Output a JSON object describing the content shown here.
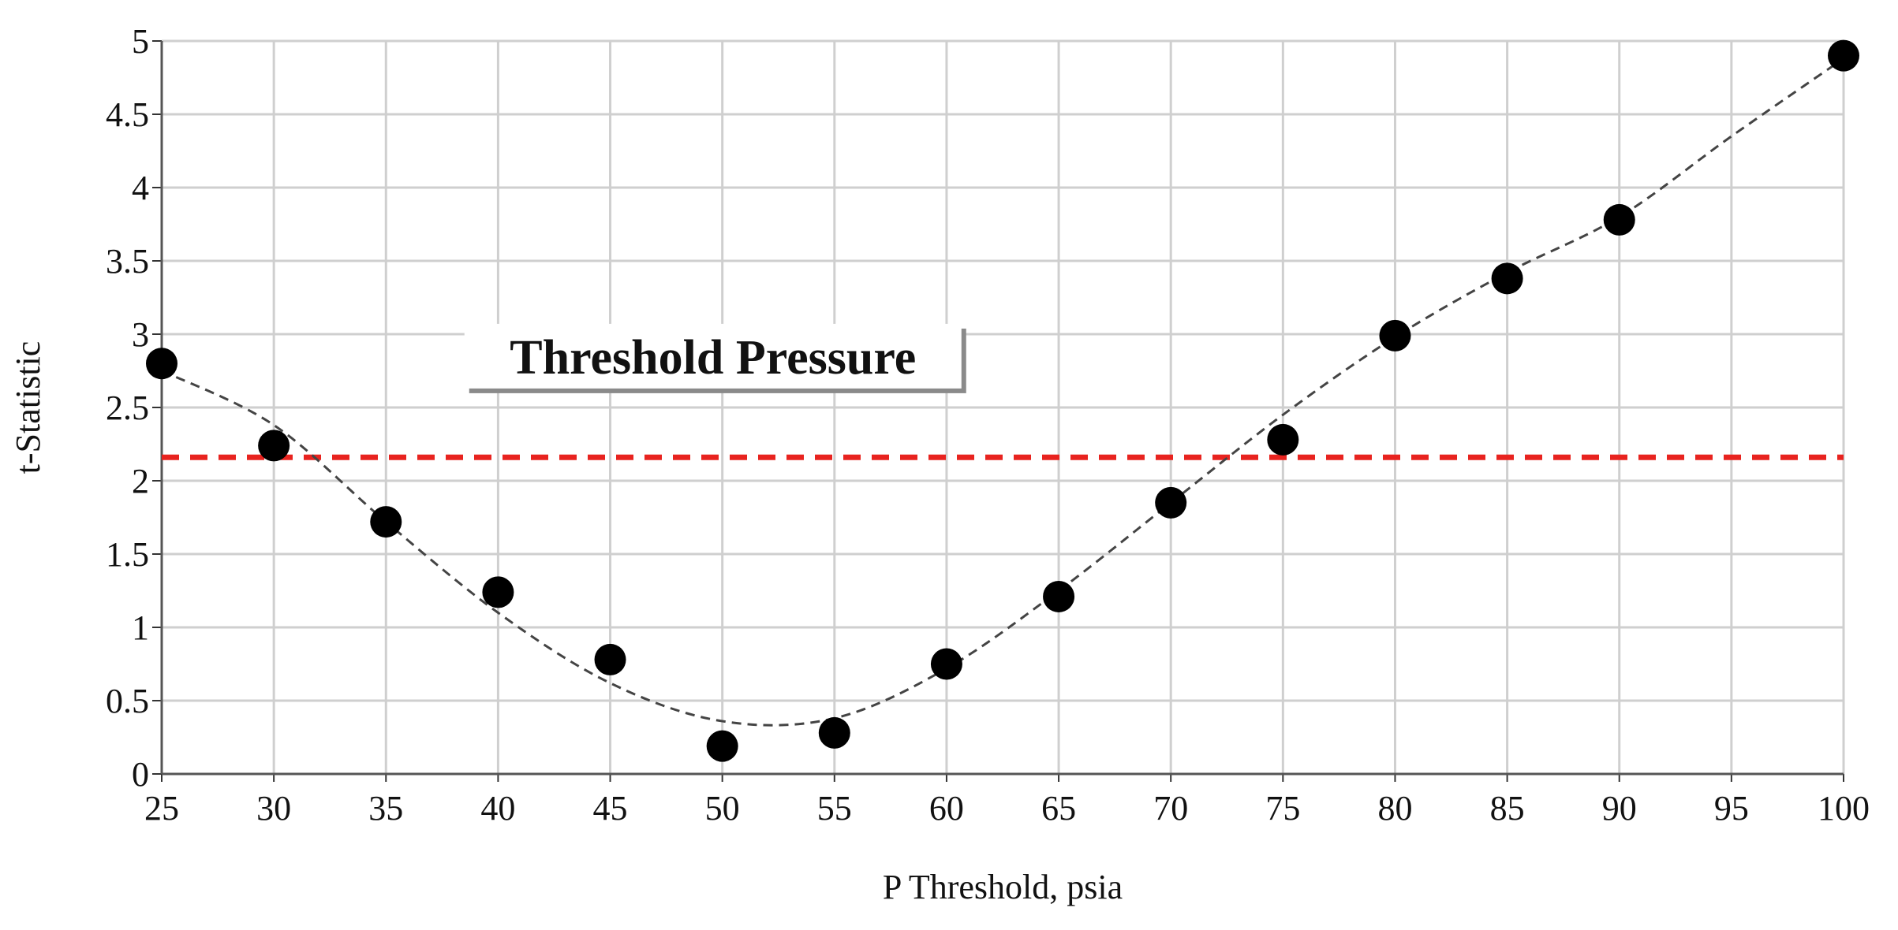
{
  "chart_data": {
    "type": "scatter",
    "title": "",
    "xlabel": "P Threshold, psia",
    "ylabel": "t-Statistic",
    "xlim": [
      25,
      100
    ],
    "ylim": [
      0,
      5
    ],
    "x_ticks": [
      25,
      30,
      35,
      40,
      45,
      50,
      55,
      60,
      65,
      70,
      75,
      80,
      85,
      90,
      95,
      100
    ],
    "y_ticks": [
      0,
      0.5,
      1,
      1.5,
      2,
      2.5,
      3,
      3.5,
      4,
      4.5,
      5
    ],
    "y_tick_labels": [
      "0",
      "0.5",
      "1",
      "1.5",
      "2",
      "2.5",
      "3",
      "3.5",
      "4",
      "4.5",
      "5"
    ],
    "grid": true,
    "points": {
      "x": [
        25,
        30,
        35,
        40,
        45,
        50,
        55,
        60,
        65,
        70,
        75,
        80,
        85,
        90,
        100
      ],
      "y": [
        2.8,
        2.24,
        1.72,
        1.24,
        0.78,
        0.19,
        0.28,
        0.75,
        1.21,
        1.85,
        2.28,
        2.99,
        3.38,
        3.78,
        4.9
      ],
      "color": "#000000"
    },
    "trend_line": {
      "style": "dashed",
      "color": "#444444",
      "x": [
        25,
        30,
        35,
        40,
        45,
        50,
        55,
        60,
        65,
        70,
        75,
        80,
        85,
        90,
        95,
        100
      ],
      "y": [
        2.75,
        2.38,
        1.72,
        1.1,
        0.62,
        0.36,
        0.38,
        0.72,
        1.25,
        1.85,
        2.45,
        2.98,
        3.42,
        3.8,
        4.35,
        4.88
      ]
    },
    "reference_line": {
      "y": 2.16,
      "color": "#e8231f",
      "style": "dashed"
    },
    "annotation": {
      "text": "Threshold Pressure",
      "x": 38.5,
      "y": 2.85
    }
  }
}
